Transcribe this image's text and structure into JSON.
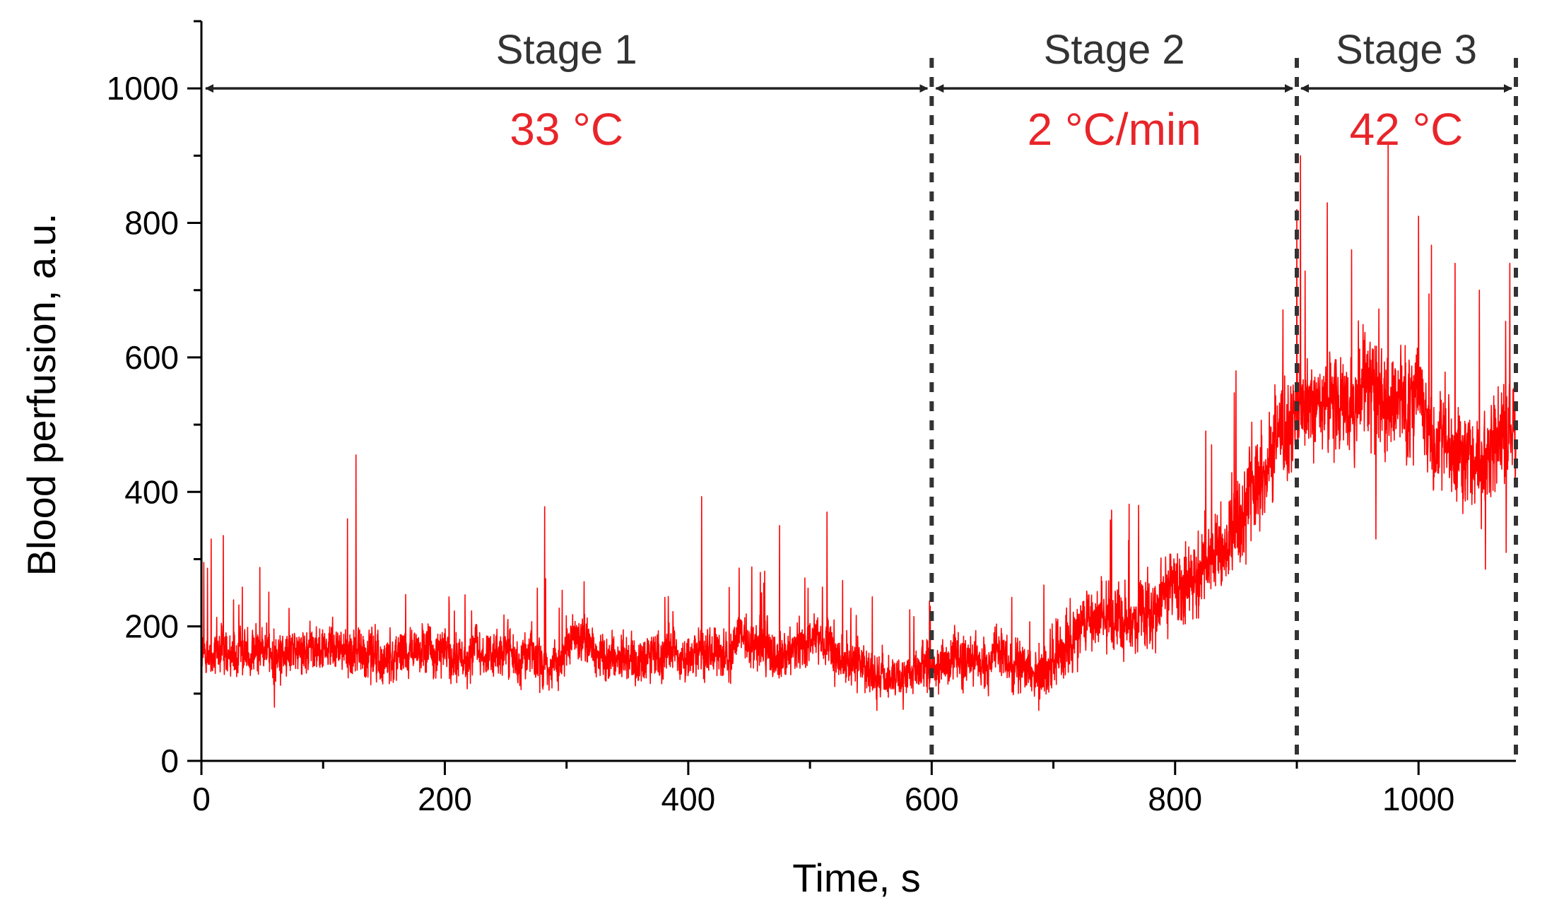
{
  "chart_data": {
    "type": "line",
    "title": "",
    "xlabel": "Time, s",
    "ylabel": "Blood perfusion, a.u.",
    "xlim": [
      0,
      1080
    ],
    "ylim": [
      0,
      1100
    ],
    "xticks": [
      0,
      200,
      400,
      600,
      800,
      1000
    ],
    "yticks": [
      0,
      200,
      400,
      600,
      800,
      1000
    ],
    "x_minor_step": 100,
    "y_minor_step": 100,
    "line_color": "#ff0000",
    "accent_color": "#e8252a",
    "stage_boundaries": [
      600,
      900,
      1080
    ],
    "stages": [
      {
        "name": "Stage 1",
        "condition": "33 °C",
        "start": 0,
        "end": 600
      },
      {
        "name": "Stage 2",
        "condition": "2 °C/min",
        "start": 600,
        "end": 900
      },
      {
        "name": "Stage 3",
        "condition": "42 °C",
        "start": 900,
        "end": 1080
      }
    ],
    "arrow_level": 1000,
    "series": [
      {
        "name": "Blood perfusion",
        "trend_x": [
          0,
          100,
          200,
          300,
          400,
          500,
          560,
          600,
          650,
          690,
          720,
          780,
          820,
          860,
          900,
          920,
          950,
          980,
          1020,
          1050,
          1080
        ],
        "trend_y": [
          160,
          165,
          160,
          165,
          160,
          170,
          130,
          150,
          155,
          120,
          190,
          225,
          280,
          380,
          520,
          530,
          540,
          530,
          470,
          450,
          480
        ],
        "noise_amplitude_x": [
          0,
          600,
          700,
          800,
          900,
          1000,
          1080
        ],
        "noise_amplitude_y": [
          45,
          45,
          55,
          70,
          90,
          95,
          85
        ],
        "spikes": [
          {
            "x": 2,
            "y": 295
          },
          {
            "x": 8,
            "y": 330
          },
          {
            "x": 18,
            "y": 335
          },
          {
            "x": 120,
            "y": 360
          },
          {
            "x": 127,
            "y": 455
          },
          {
            "x": 282,
            "y": 378
          },
          {
            "x": 411,
            "y": 393
          },
          {
            "x": 475,
            "y": 350
          },
          {
            "x": 514,
            "y": 370
          },
          {
            "x": 770,
            "y": 380
          },
          {
            "x": 830,
            "y": 470
          },
          {
            "x": 850,
            "y": 580
          },
          {
            "x": 900,
            "y": 820
          },
          {
            "x": 903,
            "y": 900
          },
          {
            "x": 925,
            "y": 830
          },
          {
            "x": 945,
            "y": 760
          },
          {
            "x": 975,
            "y": 920
          },
          {
            "x": 1000,
            "y": 810
          },
          {
            "x": 1030,
            "y": 740
          },
          {
            "x": 1050,
            "y": 700
          },
          {
            "x": 1075,
            "y": 740
          }
        ],
        "dips": [
          {
            "x": 60,
            "y": 80
          },
          {
            "x": 555,
            "y": 75
          },
          {
            "x": 688,
            "y": 75
          },
          {
            "x": 965,
            "y": 330
          },
          {
            "x": 1055,
            "y": 285
          },
          {
            "x": 1072,
            "y": 310
          }
        ]
      }
    ]
  }
}
